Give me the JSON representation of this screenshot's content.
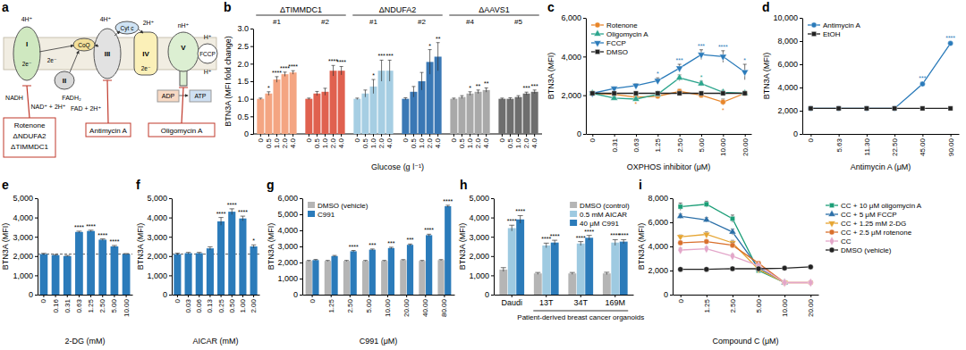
{
  "diagram": {
    "title": "a",
    "protons": [
      "4H⁺",
      "4H⁺",
      "2H⁺",
      "nH⁺",
      "H⁺",
      "H⁺"
    ],
    "complexes": [
      "I",
      "II",
      "III",
      "IV",
      "V"
    ],
    "carriers": [
      "CoQ",
      "Cyt c"
    ],
    "electrons": [
      "2e⁻",
      "2e⁻",
      "2e⁻"
    ],
    "substrates": [
      "NADH",
      "NAD⁺ + 2H⁺",
      "FADH₂",
      "FAD + 2H⁺",
      "ADP",
      "ATP"
    ],
    "uncoupler": "FCCP",
    "inhibitors": [
      {
        "lines": [
          "Rotenone",
          "ΔNDUFA2",
          "ΔTIMMDC1"
        ]
      },
      {
        "lines": [
          "Antimycin A"
        ]
      },
      {
        "lines": [
          "Oligomycin A"
        ]
      }
    ]
  },
  "chart_data": [
    {
      "type": "bar",
      "title": "b",
      "y_label": "BTN3A (MFI fold change)",
      "x_label": "Glucose (g l⁻¹)",
      "categories": [
        "0",
        "0.5",
        "1.0",
        "2.0",
        "4.0"
      ],
      "ylim": [
        0,
        3
      ],
      "yticks": [
        0,
        0.5,
        {
          "value": 1,
          "label": "1.0"
        },
        1.5,
        {
          "value": 2,
          "label": "2.0"
        },
        2.5,
        {
          "value": 3,
          "label": "3.0"
        }
      ],
      "groups": [
        {
          "label": "ΔTIMMDC1",
          "series": [
            0,
            1
          ]
        },
        {
          "label": "ΔNDUFA2",
          "series": [
            2,
            3
          ]
        },
        {
          "label": "ΔAAVS1",
          "series": [
            4,
            5
          ]
        }
      ],
      "series": [
        {
          "name": "#1",
          "color": "#f4a582",
          "values": [
            1.0,
            1.15,
            1.55,
            1.7,
            1.75
          ],
          "errors": [
            0.02,
            0.05,
            0.08,
            0.06,
            0.05
          ],
          "annotations": [
            null,
            "*",
            "****",
            "****",
            "****"
          ]
        },
        {
          "name": "#2",
          "color": "#e0614f",
          "values": [
            1.0,
            1.15,
            1.2,
            1.8,
            1.8
          ],
          "errors": [
            0.02,
            0.06,
            0.1,
            0.15,
            0.12
          ],
          "annotations": [
            null,
            null,
            null,
            "****",
            "****"
          ]
        },
        {
          "name": "#1",
          "color": "#a6cee3",
          "values": [
            1.0,
            1.15,
            1.35,
            1.8,
            1.8
          ],
          "errors": [
            0.02,
            0.1,
            0.2,
            0.3,
            0.3
          ],
          "annotations": [
            null,
            null,
            "*",
            "***",
            "***"
          ]
        },
        {
          "name": "#2",
          "color": "#3a78b5",
          "values": [
            1.0,
            1.2,
            1.5,
            2.05,
            2.2
          ],
          "errors": [
            0.03,
            0.15,
            0.25,
            0.35,
            0.4
          ],
          "annotations": [
            null,
            null,
            null,
            "*",
            "**"
          ]
        },
        {
          "name": "#4",
          "color": "#a9a9a9",
          "values": [
            1.0,
            1.05,
            1.15,
            1.2,
            1.25
          ],
          "errors": [
            0.02,
            0.04,
            0.05,
            0.05,
            0.06
          ],
          "annotations": [
            null,
            null,
            "*",
            "**",
            "**"
          ]
        },
        {
          "name": "#5",
          "color": "#6e6e6e",
          "values": [
            1.0,
            1.0,
            1.05,
            1.15,
            1.2
          ],
          "errors": [
            0.02,
            0.03,
            0.04,
            0.04,
            0.05
          ],
          "annotations": [
            null,
            null,
            null,
            "***",
            "***"
          ]
        }
      ]
    },
    {
      "type": "line",
      "title": "c",
      "y_label": "BTN3A (MFI)",
      "x_label": "OXPHOS inhibitor (μM)",
      "categories": [
        "0",
        "0.31",
        "0.63",
        "1.25",
        "2.50",
        "5.00",
        "10.00",
        "20.00"
      ],
      "ylim": [
        0,
        6000
      ],
      "yticks": [
        0,
        {
          "value": 2000,
          "label": "2,000"
        },
        {
          "value": 4000,
          "label": "4,000"
        },
        {
          "value": 6000,
          "label": "6,000"
        }
      ],
      "legend": "top-left",
      "series": [
        {
          "name": "Rotenone",
          "color": "#e8862a",
          "marker": "circle",
          "values": [
            2100,
            2050,
            1900,
            1950,
            2200,
            2000,
            1650,
            2100
          ],
          "errors": [
            50,
            60,
            80,
            80,
            100,
            100,
            150,
            100
          ],
          "annotations": [
            null,
            null,
            "*",
            null,
            null,
            null,
            "*",
            null
          ]
        },
        {
          "name": "Oligomycin A",
          "color": "#2ca58d",
          "marker": "triangle",
          "values": [
            2100,
            1850,
            1800,
            2050,
            2900,
            2600,
            2150,
            2100
          ],
          "errors": [
            50,
            60,
            60,
            80,
            150,
            120,
            100,
            80
          ],
          "annotations": [
            null,
            null,
            null,
            null,
            null,
            "*",
            null,
            null
          ]
        },
        {
          "name": "FCCP",
          "color": "#2b7bba",
          "marker": "triangle-down",
          "values": [
            2100,
            2350,
            2500,
            2750,
            3400,
            4100,
            4000,
            3200
          ],
          "errors": [
            50,
            80,
            100,
            150,
            200,
            250,
            300,
            400
          ],
          "annotations": [
            null,
            null,
            null,
            "*",
            "***",
            "***",
            "****",
            "*"
          ]
        },
        {
          "name": "DMSO",
          "color": "#222222",
          "marker": "square",
          "values": [
            2100,
            2100,
            2100,
            2100,
            2100,
            2100,
            2100,
            2100
          ],
          "errors": [
            40,
            40,
            40,
            40,
            40,
            40,
            40,
            40
          ],
          "annotations": [
            null,
            null,
            null,
            null,
            null,
            null,
            null,
            null
          ]
        }
      ]
    },
    {
      "type": "line",
      "title": "d",
      "y_label": "BTN3A (MFI)",
      "x_label": "Antimycin A (μM)",
      "categories": [
        "0",
        "5.63",
        "11.30",
        "22.50",
        "45.00",
        "90.00"
      ],
      "ylim": [
        0,
        10000
      ],
      "yticks": [
        0,
        {
          "value": 2000,
          "label": "2,000"
        },
        {
          "value": 4000,
          "label": "4,000"
        },
        {
          "value": 6000,
          "label": "6,000"
        },
        {
          "value": 8000,
          "label": "8,000"
        },
        {
          "value": 10000,
          "label": "10,000"
        }
      ],
      "legend": "top-left",
      "series": [
        {
          "name": "Antimycin A",
          "color": "#2b7bba",
          "marker": "circle",
          "values": [
            2200,
            2200,
            2200,
            2200,
            4300,
            7800
          ],
          "errors": [
            50,
            50,
            50,
            50,
            150,
            150
          ],
          "annotations": [
            null,
            null,
            null,
            null,
            "***",
            "****"
          ]
        },
        {
          "name": "EtOH",
          "color": "#222222",
          "marker": "square",
          "values": [
            2200,
            2200,
            2200,
            2200,
            2200,
            2200
          ],
          "errors": [
            40,
            40,
            40,
            40,
            40,
            40
          ],
          "annotations": [
            null,
            null,
            null,
            null,
            null,
            null
          ]
        }
      ]
    },
    {
      "type": "bar",
      "title": "e",
      "y_label": "BTN3A (MFI)",
      "x_label": "2-DG (mM)",
      "categories": [
        "0",
        "0.16",
        "0.31",
        "0.63",
        "1.25",
        "2.50",
        "5.00",
        "10.00"
      ],
      "ylim": [
        0,
        5000
      ],
      "yticks": [
        0,
        {
          "value": 1000,
          "label": "1,000"
        },
        {
          "value": 2000,
          "label": "2,000"
        },
        {
          "value": 3000,
          "label": "3,000"
        },
        {
          "value": 4000,
          "label": "4,000"
        },
        {
          "value": 5000,
          "label": "5,000"
        }
      ],
      "color": "#2b7bba",
      "values": [
        2100,
        2050,
        2000,
        3250,
        3300,
        2850,
        2500,
        2100
      ],
      "errors": [
        40,
        30,
        30,
        40,
        40,
        40,
        50,
        30
      ],
      "annotations": [
        null,
        null,
        null,
        "****",
        "****",
        "****",
        "****",
        null
      ],
      "reference_line": 2100
    },
    {
      "type": "bar",
      "title": "f",
      "y_label": "BTN3A (MFI)",
      "x_label": "AICAR (mM)",
      "categories": [
        "0",
        "0.03",
        "0.06",
        "0.13",
        "0.25",
        "0.50",
        "1.00",
        "2.00"
      ],
      "ylim": [
        0,
        5000
      ],
      "yticks": [
        0,
        {
          "value": 1000,
          "label": "1,000"
        },
        {
          "value": 2000,
          "label": "2,000"
        },
        {
          "value": 3000,
          "label": "3,000"
        },
        {
          "value": 4000,
          "label": "4,000"
        },
        {
          "value": 5000,
          "label": "5,000"
        }
      ],
      "color": "#2b7bba",
      "values": [
        2100,
        2150,
        2150,
        2400,
        3800,
        4300,
        3950,
        2500
      ],
      "errors": [
        50,
        40,
        40,
        80,
        200,
        150,
        120,
        80
      ],
      "annotations": [
        null,
        null,
        null,
        null,
        "****",
        "****",
        "****",
        "*"
      ],
      "reference_line": 2100
    },
    {
      "type": "bar",
      "title": "g",
      "y_label": "BTN3A (MFI)",
      "x_label": "C991 (μM)",
      "categories": [
        "0",
        "1.25",
        "2.50",
        "5.00",
        "10.00",
        "20.00",
        "40.00",
        "80.00"
      ],
      "ylim": [
        0,
        6000
      ],
      "yticks": [
        0,
        {
          "value": 1000,
          "label": "1,000"
        },
        {
          "value": 2000,
          "label": "2,000"
        },
        {
          "value": 3000,
          "label": "3,000"
        },
        {
          "value": 4000,
          "label": "4,000"
        },
        {
          "value": 5000,
          "label": "5,000"
        },
        {
          "value": 6000,
          "label": "6,000"
        }
      ],
      "legend": "top-left",
      "series": [
        {
          "name": "DMSO (vehicle)",
          "color": "#b5b5b5",
          "values": [
            2100,
            2100,
            2100,
            2100,
            2100,
            2150,
            2100,
            2150
          ],
          "errors": [
            30,
            30,
            30,
            30,
            30,
            30,
            30,
            30
          ],
          "annotations": [
            null,
            null,
            null,
            null,
            null,
            null,
            null,
            null
          ]
        },
        {
          "name": "C991",
          "color": "#2b7bba",
          "values": [
            2150,
            2400,
            2700,
            2800,
            2900,
            3100,
            3700,
            5500
          ],
          "errors": [
            40,
            40,
            50,
            40,
            50,
            50,
            60,
            60
          ],
          "annotations": [
            null,
            null,
            "****",
            "***",
            "***",
            "***",
            "****",
            "****"
          ]
        }
      ]
    },
    {
      "type": "bar",
      "title": "h",
      "y_label": "BTN3A (MFI)",
      "categories": [
        "Daudi",
        "13T",
        "34T",
        "169M"
      ],
      "group": {
        "label": "Patient-derived breast cancer organoids",
        "from": 1,
        "to": 3
      },
      "ylim": [
        0,
        5000
      ],
      "yticks": [
        0,
        {
          "value": 1000,
          "label": "1,000"
        },
        {
          "value": 2000,
          "label": "2,000"
        },
        {
          "value": 3000,
          "label": "3,000"
        },
        {
          "value": 4000,
          "label": "4,000"
        },
        {
          "value": 5000,
          "label": "5,000"
        }
      ],
      "legend": "top-right",
      "series": [
        {
          "name": "DMSO (control)",
          "color": "#b5b5b5",
          "values": [
            1300,
            1100,
            1100,
            1100
          ],
          "errors": [
            100,
            50,
            50,
            60
          ],
          "annotations": [
            null,
            null,
            null,
            null
          ]
        },
        {
          "name": "0.5 mM AICAR",
          "color": "#9ecae1",
          "values": [
            3450,
            2550,
            2650,
            2700
          ],
          "errors": [
            150,
            120,
            100,
            150
          ],
          "annotations": [
            "****",
            "****",
            "****",
            "****"
          ]
        },
        {
          "name": "40 μM C991",
          "color": "#2b7bba",
          "values": [
            3900,
            2700,
            2950,
            2750
          ],
          "errors": [
            200,
            120,
            120,
            100
          ],
          "annotations": [
            "****",
            "****",
            "****",
            "****"
          ]
        }
      ]
    },
    {
      "type": "line",
      "title": "i",
      "y_label": "BTN3A (MFI)",
      "x_label": "Compound C (μM)",
      "categories": [
        "0",
        "1.25",
        "2.50",
        "5.00",
        "10.00",
        "20.00"
      ],
      "ylim": [
        0,
        8000
      ],
      "yticks": [
        0,
        {
          "value": 2000,
          "label": "2,000"
        },
        {
          "value": 4000,
          "label": "4,000"
        },
        {
          "value": 6000,
          "label": "6,000"
        },
        {
          "value": 8000,
          "label": "8,000"
        }
      ],
      "legend": "right",
      "series": [
        {
          "name": "CC + 10 μM oligomycin A",
          "color": "#1b9e77",
          "marker": "square",
          "values": [
            7300,
            7500,
            6300,
            2000,
            1000,
            null
          ],
          "errors": [
            300,
            250,
            300,
            200,
            100,
            null
          ]
        },
        {
          "name": "CC + 5 μM FCCP",
          "color": "#2b6fa8",
          "marker": "triangle",
          "values": [
            6500,
            6200,
            5200,
            2200,
            1000,
            null
          ],
          "errors": [
            200,
            200,
            250,
            200,
            100,
            null
          ]
        },
        {
          "name": "CC + 1.25 mM 2-DG",
          "color": "#e6a532",
          "marker": "triangle-down",
          "values": [
            4800,
            5000,
            4300,
            2100,
            1000,
            null
          ],
          "errors": [
            150,
            200,
            200,
            150,
            100,
            null
          ]
        },
        {
          "name": "CC + 2.5 μM rotenone",
          "color": "#d9702c",
          "marker": "circle",
          "values": [
            4300,
            4400,
            4100,
            2600,
            1000,
            1000
          ],
          "errors": [
            150,
            150,
            200,
            150,
            100,
            100
          ]
        },
        {
          "name": "CC",
          "color": "#e3a6c9",
          "marker": "diamond",
          "values": [
            3700,
            3800,
            3200,
            2400,
            1000,
            1000
          ],
          "errors": [
            150,
            150,
            150,
            150,
            100,
            100
          ]
        },
        {
          "name": "DMSO (vehicle)",
          "color": "#222222",
          "marker": "circle",
          "values": [
            2100,
            2100,
            2150,
            2150,
            2200,
            2300
          ],
          "errors": [
            50,
            50,
            50,
            50,
            50,
            50
          ]
        }
      ]
    }
  ]
}
